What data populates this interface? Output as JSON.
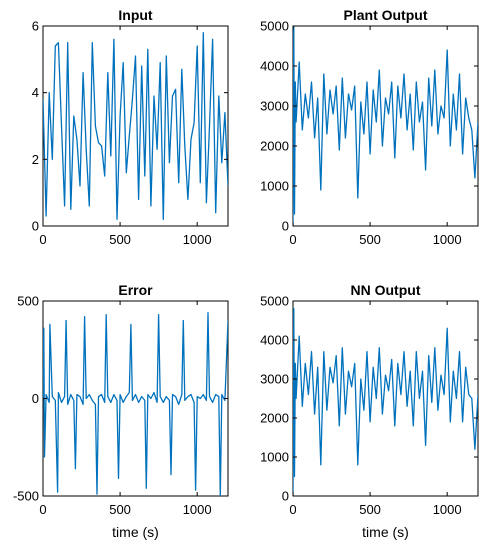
{
  "line_color": "#0072BD",
  "chart_data": [
    {
      "type": "line",
      "title": "Input",
      "xlabel": "",
      "ylabel": "",
      "xlim": [
        0,
        1200
      ],
      "ylim": [
        0,
        6
      ],
      "xticks": [
        0,
        500,
        1000
      ],
      "yticks": [
        0,
        2,
        4,
        6
      ],
      "grid": false,
      "series": [
        {
          "x": [
            0,
            20,
            40,
            60,
            80,
            100,
            120,
            140,
            160,
            180,
            200,
            220,
            240,
            260,
            280,
            300,
            320,
            340,
            360,
            380,
            400,
            420,
            440,
            460,
            480,
            500,
            520,
            540,
            560,
            580,
            600,
            620,
            640,
            660,
            680,
            700,
            720,
            740,
            760,
            780,
            800,
            820,
            840,
            860,
            880,
            900,
            920,
            940,
            960,
            980,
            1000,
            1020,
            1040,
            1060,
            1080,
            1100,
            1120,
            1140,
            1160,
            1180,
            1200
          ],
          "values": [
            3.8,
            0.3,
            4.0,
            2.0,
            5.4,
            5.5,
            3.0,
            0.6,
            5.5,
            0.5,
            3.3,
            2.6,
            1.2,
            4.6,
            2.3,
            0.6,
            5.5,
            3.0,
            2.5,
            2.4,
            1.5,
            4.6,
            2.1,
            5.6,
            0.2,
            3.3,
            4.9,
            1.6,
            2.7,
            3.8,
            5.1,
            0.8,
            4.8,
            1.5,
            5.3,
            0.6,
            3.9,
            2.3,
            4.9,
            0.2,
            5.1,
            1.9,
            3.9,
            4.1,
            1.3,
            4.7,
            2.4,
            0.8,
            2.6,
            3.1,
            5.4,
            1.3,
            5.8,
            0.7,
            3.0,
            5.6,
            0.4,
            3.9,
            1.9,
            3.4,
            1.2
          ]
        }
      ]
    },
    {
      "type": "line",
      "title": "Plant Output",
      "xlabel": "",
      "ylabel": "",
      "xlim": [
        0,
        1200
      ],
      "ylim": [
        0,
        5000
      ],
      "xticks": [
        0,
        500,
        1000
      ],
      "yticks": [
        0,
        1000,
        2000,
        3000,
        4000,
        5000
      ],
      "grid": false,
      "series": [
        {
          "x": [
            0,
            5,
            10,
            15,
            20,
            40,
            60,
            80,
            100,
            120,
            140,
            160,
            180,
            200,
            220,
            240,
            260,
            280,
            300,
            320,
            340,
            360,
            380,
            400,
            420,
            440,
            460,
            480,
            500,
            520,
            540,
            560,
            580,
            600,
            620,
            640,
            660,
            680,
            700,
            720,
            740,
            760,
            780,
            800,
            820,
            840,
            860,
            880,
            900,
            920,
            940,
            960,
            980,
            1000,
            1020,
            1040,
            1060,
            1080,
            1100,
            1120,
            1140,
            1160,
            1180,
            1200
          ],
          "values": [
            0,
            5000,
            300,
            3600,
            2600,
            4100,
            2400,
            3300,
            2700,
            3600,
            2200,
            3200,
            900,
            3800,
            2300,
            3400,
            2800,
            3500,
            1900,
            3700,
            2200,
            3300,
            2900,
            3500,
            700,
            3100,
            2300,
            3600,
            1800,
            3400,
            2600,
            3900,
            2000,
            3200,
            2800,
            3600,
            1700,
            3500,
            2700,
            3800,
            2400,
            3300,
            1900,
            3600,
            2600,
            3100,
            1400,
            3700,
            2500,
            3900,
            2300,
            3000,
            2700,
            4400,
            2000,
            3300,
            2400,
            3800,
            1800,
            3200,
            2700,
            2400,
            1200,
            2600
          ]
        }
      ]
    },
    {
      "type": "line",
      "title": "Error",
      "xlabel": "time (s)",
      "ylabel": "",
      "xlim": [
        0,
        1200
      ],
      "ylim": [
        -500,
        500
      ],
      "xticks": [
        0,
        500,
        1000
      ],
      "yticks": [
        -500,
        0,
        500
      ],
      "grid": false,
      "series": [
        {
          "x": [
            0,
            5,
            10,
            20,
            40,
            45,
            60,
            80,
            95,
            100,
            120,
            140,
            150,
            160,
            180,
            200,
            210,
            220,
            240,
            260,
            270,
            280,
            300,
            320,
            340,
            350,
            360,
            380,
            400,
            410,
            420,
            440,
            460,
            480,
            490,
            500,
            520,
            540,
            560,
            570,
            580,
            600,
            620,
            640,
            660,
            670,
            680,
            700,
            720,
            740,
            750,
            760,
            780,
            800,
            820,
            830,
            840,
            860,
            880,
            900,
            910,
            920,
            940,
            960,
            980,
            990,
            1000,
            1020,
            1040,
            1060,
            1070,
            1080,
            1100,
            1120,
            1140,
            1150,
            1160,
            1180,
            1200
          ],
          "values": [
            0,
            360,
            -300,
            20,
            -20,
            380,
            10,
            -10,
            -480,
            30,
            -20,
            10,
            400,
            -30,
            20,
            -10,
            -360,
            20,
            10,
            -30,
            420,
            0,
            20,
            -10,
            -30,
            -490,
            10,
            20,
            -20,
            430,
            10,
            -20,
            20,
            -10,
            -410,
            20,
            -20,
            10,
            30,
            380,
            -10,
            20,
            -20,
            10,
            -10,
            -460,
            20,
            0,
            30,
            -20,
            430,
            10,
            -20,
            10,
            -10,
            -390,
            20,
            10,
            -30,
            20,
            400,
            -10,
            10,
            20,
            -20,
            -470,
            10,
            0,
            20,
            -10,
            440,
            10,
            -20,
            20,
            10,
            -500,
            20,
            -10,
            400
          ]
        }
      ]
    },
    {
      "type": "line",
      "title": "NN Output",
      "xlabel": "time (s)",
      "ylabel": "",
      "xlim": [
        0,
        1200
      ],
      "ylim": [
        0,
        5000
      ],
      "xticks": [
        0,
        500,
        1000
      ],
      "yticks": [
        0,
        1000,
        2000,
        3000,
        4000,
        5000
      ],
      "grid": false,
      "series": [
        {
          "x": [
            0,
            5,
            10,
            15,
            20,
            40,
            60,
            80,
            100,
            120,
            140,
            160,
            180,
            200,
            220,
            240,
            260,
            280,
            300,
            320,
            340,
            360,
            380,
            400,
            420,
            440,
            460,
            480,
            500,
            520,
            540,
            560,
            580,
            600,
            620,
            640,
            660,
            680,
            700,
            720,
            740,
            760,
            780,
            800,
            820,
            840,
            860,
            880,
            900,
            920,
            940,
            960,
            980,
            1000,
            1020,
            1040,
            1060,
            1080,
            1100,
            1120,
            1140,
            1160,
            1180,
            1200
          ],
          "values": [
            0,
            4800,
            500,
            3400,
            2500,
            4100,
            2300,
            3400,
            2600,
            3700,
            2100,
            3300,
            800,
            3700,
            2200,
            3300,
            2900,
            3600,
            1800,
            3800,
            2100,
            3200,
            2800,
            3400,
            800,
            3000,
            2200,
            3700,
            1900,
            3300,
            2500,
            3800,
            2100,
            3100,
            2700,
            3500,
            1800,
            3400,
            2600,
            3700,
            2300,
            3200,
            1800,
            3700,
            2500,
            3200,
            1300,
            3600,
            2400,
            3800,
            2200,
            3100,
            2600,
            4300,
            1900,
            3200,
            2500,
            3700,
            1900,
            3300,
            2600,
            2500,
            1200,
            2600
          ]
        }
      ]
    }
  ]
}
